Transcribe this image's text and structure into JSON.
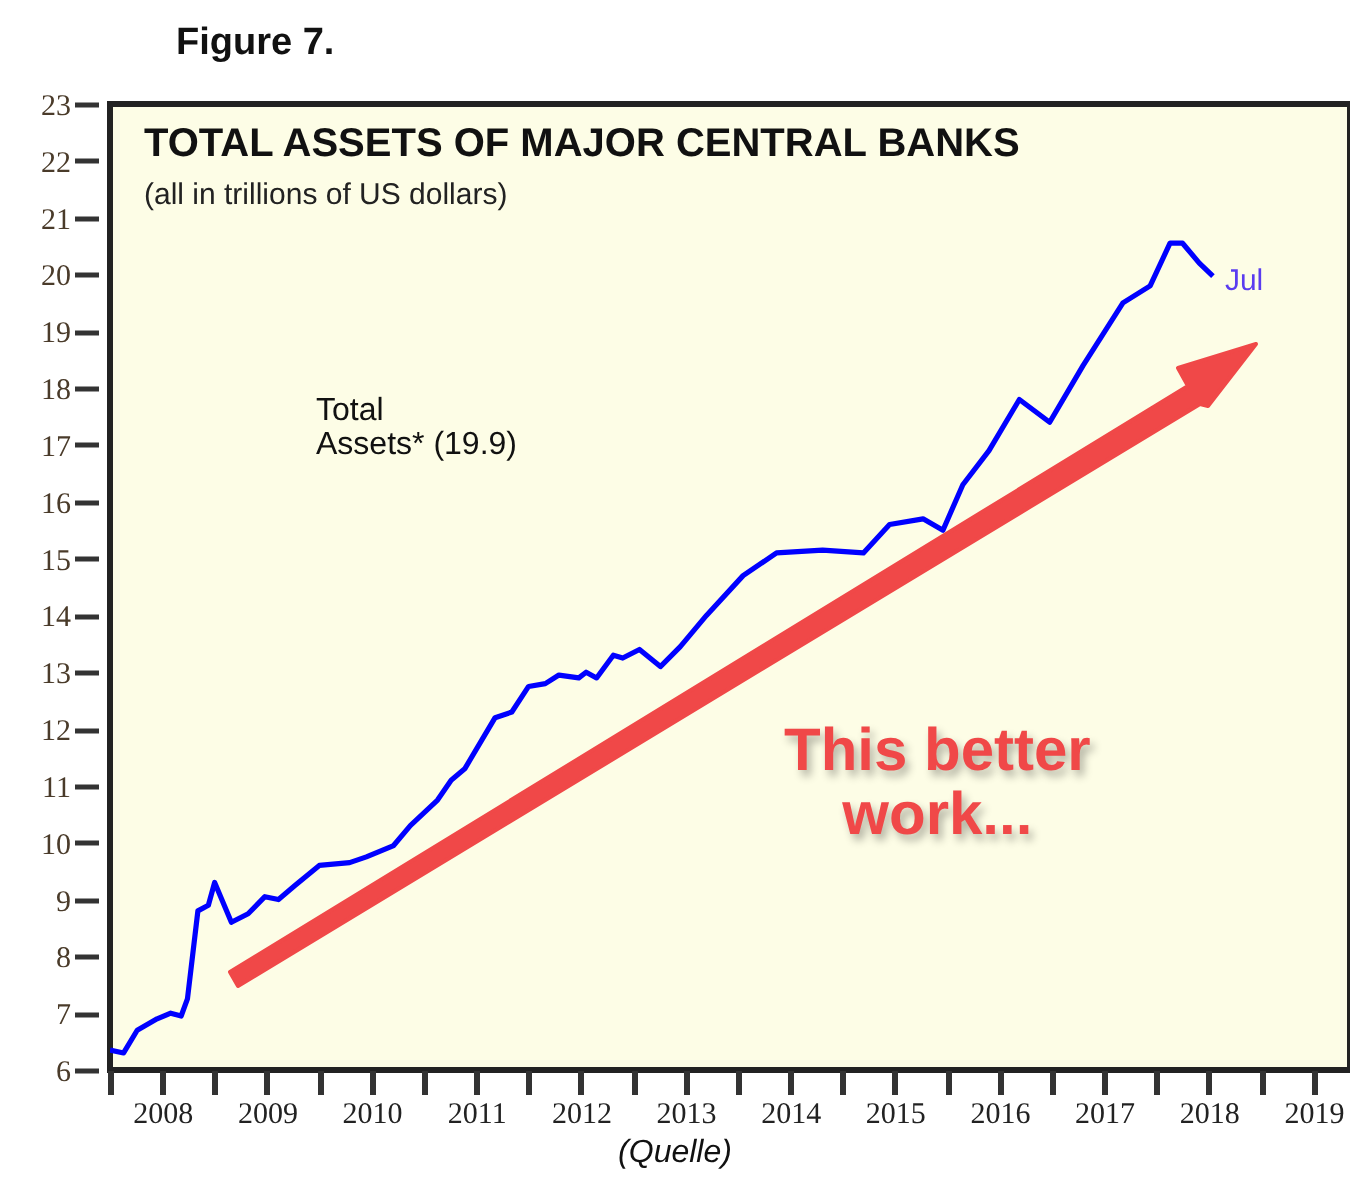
{
  "chart_data": {
    "type": "line",
    "title": "TOTAL ASSETS OF MAJOR CENTRAL BANKS",
    "subtitle": "(all in trillions of US dollars)",
    "annotations": [
      "Figure 7.",
      "Total\nAssets* (19.9)",
      "This better\nwork...",
      "(Quelle)",
      {
        "text": "Jul",
        "x": 2018.54,
        "y": 19.97
      }
    ],
    "series": [
      {
        "color": "#0000ff",
        "x": [
          2008.0,
          2008.13,
          2008.26,
          2008.45,
          2008.58,
          2008.68,
          2008.74,
          2008.84,
          2008.94,
          2009.0,
          2009.16,
          2009.32,
          2009.48,
          2009.61,
          2009.77,
          2010.0,
          2010.29,
          2010.45,
          2010.71,
          2010.87,
          2011.13,
          2011.26,
          2011.39,
          2011.68,
          2011.84,
          2012.0,
          2012.16,
          2012.29,
          2012.48,
          2012.55,
          2012.65,
          2012.81,
          2012.9,
          2013.06,
          2013.26,
          2013.45,
          2013.7,
          2014.05,
          2014.37,
          2014.81,
          2015.2,
          2015.45,
          2015.77,
          2015.96,
          2016.15,
          2016.4,
          2016.69,
          2016.98,
          2017.3,
          2017.68,
          2017.94,
          2018.13,
          2018.25,
          2018.41,
          2018.54
        ],
        "values": [
          6.35,
          6.3,
          6.7,
          6.9,
          7.0,
          6.95,
          7.25,
          8.8,
          8.9,
          9.3,
          8.6,
          8.75,
          9.05,
          9.0,
          9.25,
          9.6,
          9.65,
          9.75,
          9.95,
          10.3,
          10.75,
          11.1,
          11.3,
          12.2,
          12.3,
          12.75,
          12.8,
          12.95,
          12.9,
          13.0,
          12.9,
          13.3,
          13.25,
          13.4,
          13.1,
          13.45,
          14.0,
          14.7,
          15.1,
          15.15,
          15.1,
          15.6,
          15.7,
          15.5,
          16.3,
          16.9,
          17.8,
          17.4,
          18.4,
          19.5,
          19.8,
          20.55,
          20.55,
          20.2,
          19.97
        ]
      }
    ],
    "xlim": [
      2008,
      2019.85
    ],
    "xticks": [
      {
        "value": 2008,
        "label": null
      },
      {
        "value": 2008.5,
        "label": "2008"
      },
      {
        "value": 2009,
        "label": null
      },
      {
        "value": 2009.5,
        "label": "2009"
      },
      {
        "value": 2010,
        "label": null
      },
      {
        "value": 2010.5,
        "label": "2010"
      },
      {
        "value": 2011,
        "label": null
      },
      {
        "value": 2011.5,
        "label": "2011"
      },
      {
        "value": 2012,
        "label": null
      },
      {
        "value": 2012.5,
        "label": "2012"
      },
      {
        "value": 2013,
        "label": null
      },
      {
        "value": 2013.5,
        "label": "2013"
      },
      {
        "value": 2014,
        "label": null
      },
      {
        "value": 2014.5,
        "label": "2014"
      },
      {
        "value": 2015,
        "label": null
      },
      {
        "value": 2015.5,
        "label": "2015"
      },
      {
        "value": 2016,
        "label": null
      },
      {
        "value": 2016.5,
        "label": "2016"
      },
      {
        "value": 2017,
        "label": null
      },
      {
        "value": 2017.5,
        "label": "2017"
      },
      {
        "value": 2018,
        "label": null
      },
      {
        "value": 2018.5,
        "label": "2018"
      },
      {
        "value": 2019,
        "label": null
      },
      {
        "value": 2019.5,
        "label": "2019"
      }
    ],
    "ylim": [
      6,
      23
    ],
    "yticks": [
      6,
      7,
      8,
      9,
      10,
      11,
      12,
      13,
      14,
      15,
      16,
      17,
      18,
      19,
      20,
      21,
      22,
      23
    ]
  }
}
